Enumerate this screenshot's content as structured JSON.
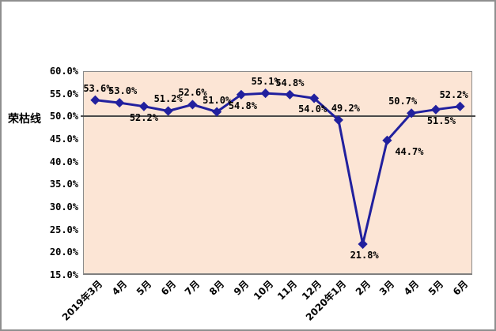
{
  "chart_data": {
    "type": "line",
    "title": "",
    "ylabel": "荣枯线",
    "categories": [
      "2019年3月",
      "4月",
      "5月",
      "6月",
      "7月",
      "8月",
      "9月",
      "10月",
      "11月",
      "12月",
      "2020年1月",
      "2月",
      "3月",
      "4月",
      "5月",
      "6月"
    ],
    "values": [
      53.6,
      53.0,
      52.2,
      51.2,
      52.6,
      51.0,
      54.8,
      55.1,
      54.8,
      54.0,
      49.2,
      21.8,
      44.7,
      50.7,
      51.5,
      52.2
    ],
    "data_labels": [
      "53.6%",
      "53.0%",
      "52.2%",
      "51.2%",
      "52.6%",
      "51.0%",
      "54.8%",
      "55.1%",
      "54.8%",
      "54.0%",
      "49.2%",
      "21.8%",
      "44.7%",
      "50.7%",
      "51.5%",
      "52.2%"
    ],
    "label_positions": [
      "above",
      "above",
      "below",
      "above",
      "above",
      "above",
      "below",
      "above",
      "above",
      "below",
      "above",
      "below",
      "below",
      "above",
      "below",
      "above"
    ],
    "label_dx": [
      3,
      4,
      0,
      0,
      0,
      0,
      2,
      0,
      0,
      -2,
      9,
      2,
      28,
      -11,
      7,
      -8
    ],
    "ylim": [
      15,
      60
    ],
    "ytick_labels": [
      "60.0%",
      "55.0%",
      "50.0%",
      "45.0%",
      "40.0%",
      "35.0%",
      "30.0%",
      "25.0%",
      "20.0%",
      "15.0%"
    ],
    "reference_line": {
      "value": 50.0,
      "name": "荣枯线"
    },
    "grid": false,
    "legend": "none",
    "colors": {
      "series": "#21209e",
      "plot_bg": "#fce5d5",
      "reference_line": "#4a4a4a",
      "axis_border": "#8c8c8c",
      "label_text": "#000000",
      "outer_border": "#8f8f8f"
    }
  }
}
